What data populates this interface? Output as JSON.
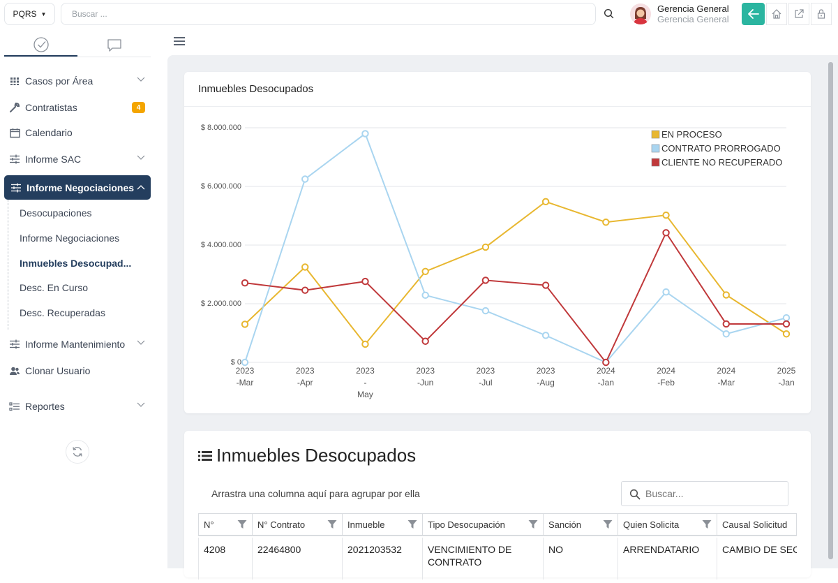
{
  "topbar": {
    "module_button": "PQRS",
    "search_placeholder": "Buscar ...",
    "user_name": "Gerencia General",
    "user_role": "Gerencia General"
  },
  "sidebar": {
    "items": [
      {
        "label": "Casos por Área"
      },
      {
        "label": "Contratistas",
        "badge": "4"
      },
      {
        "label": "Calendario"
      },
      {
        "label": "Informe SAC"
      },
      {
        "label": "Informe Negociaciones"
      },
      {
        "label": "Informe Mantenimiento"
      },
      {
        "label": "Clonar Usuario"
      },
      {
        "label": "Reportes"
      }
    ],
    "subitems": [
      {
        "label": "Desocupaciones"
      },
      {
        "label": "Informe Negociaciones"
      },
      {
        "label": "Inmuebles Desocupad..."
      },
      {
        "label": "Desc. En Curso"
      },
      {
        "label": "Desc. Recuperadas"
      }
    ]
  },
  "chart_card": {
    "title": "Inmuebles Desocupados"
  },
  "chart_data": {
    "type": "line",
    "categories": [
      [
        "2023",
        "-Mar"
      ],
      [
        "2023",
        "-Apr"
      ],
      [
        "2023",
        "-",
        "May"
      ],
      [
        "2023",
        "-Jun"
      ],
      [
        "2023",
        "-Jul"
      ],
      [
        "2023",
        "-Aug"
      ],
      [
        "2024",
        "-Jan"
      ],
      [
        "2024",
        "-Feb"
      ],
      [
        "2024",
        "-Mar"
      ],
      [
        "2025",
        "-Jan"
      ]
    ],
    "y_ticks": [
      "$ 0",
      "$ 2.000.000",
      "$ 4.000.000",
      "$ 6.000.000",
      "$ 8.000.000"
    ],
    "ylim": [
      0,
      8000000
    ],
    "grid": true,
    "legend_position": "top-right",
    "series": [
      {
        "name": "EN PROCESO",
        "color": "#e8b730",
        "values": [
          1300000,
          3250000,
          620000,
          3100000,
          3930000,
          5480000,
          4780000,
          5020000,
          2300000,
          970000
        ]
      },
      {
        "name": "CONTRATO PRORROGADO",
        "color": "#a9d5f0",
        "values": [
          0,
          6250000,
          7800000,
          2290000,
          1760000,
          920000,
          0,
          2400000,
          970000,
          1520000
        ]
      },
      {
        "name": "CLIENTE NO RECUPERADO",
        "color": "#c0393b",
        "values": [
          2710000,
          2460000,
          2760000,
          720000,
          2800000,
          2630000,
          0,
          4420000,
          1310000,
          1310000
        ]
      }
    ]
  },
  "table_card": {
    "title": "Inmuebles Desocupados",
    "group_hint": "Arrastra una columna aquí para agrupar por ella",
    "search_placeholder": "Buscar...",
    "columns": [
      "N°",
      "N° Contrato",
      "Inmueble",
      "Tipo Desocupación",
      "Sanción",
      "Quien Solicita",
      "Causal Solicitud"
    ],
    "rows": [
      [
        "4208",
        "22464800",
        "2021203532",
        "VENCIMIENTO DE CONTRATO",
        "NO",
        "ARRENDATARIO",
        "CAMBIO DE SECTOR"
      ]
    ]
  }
}
